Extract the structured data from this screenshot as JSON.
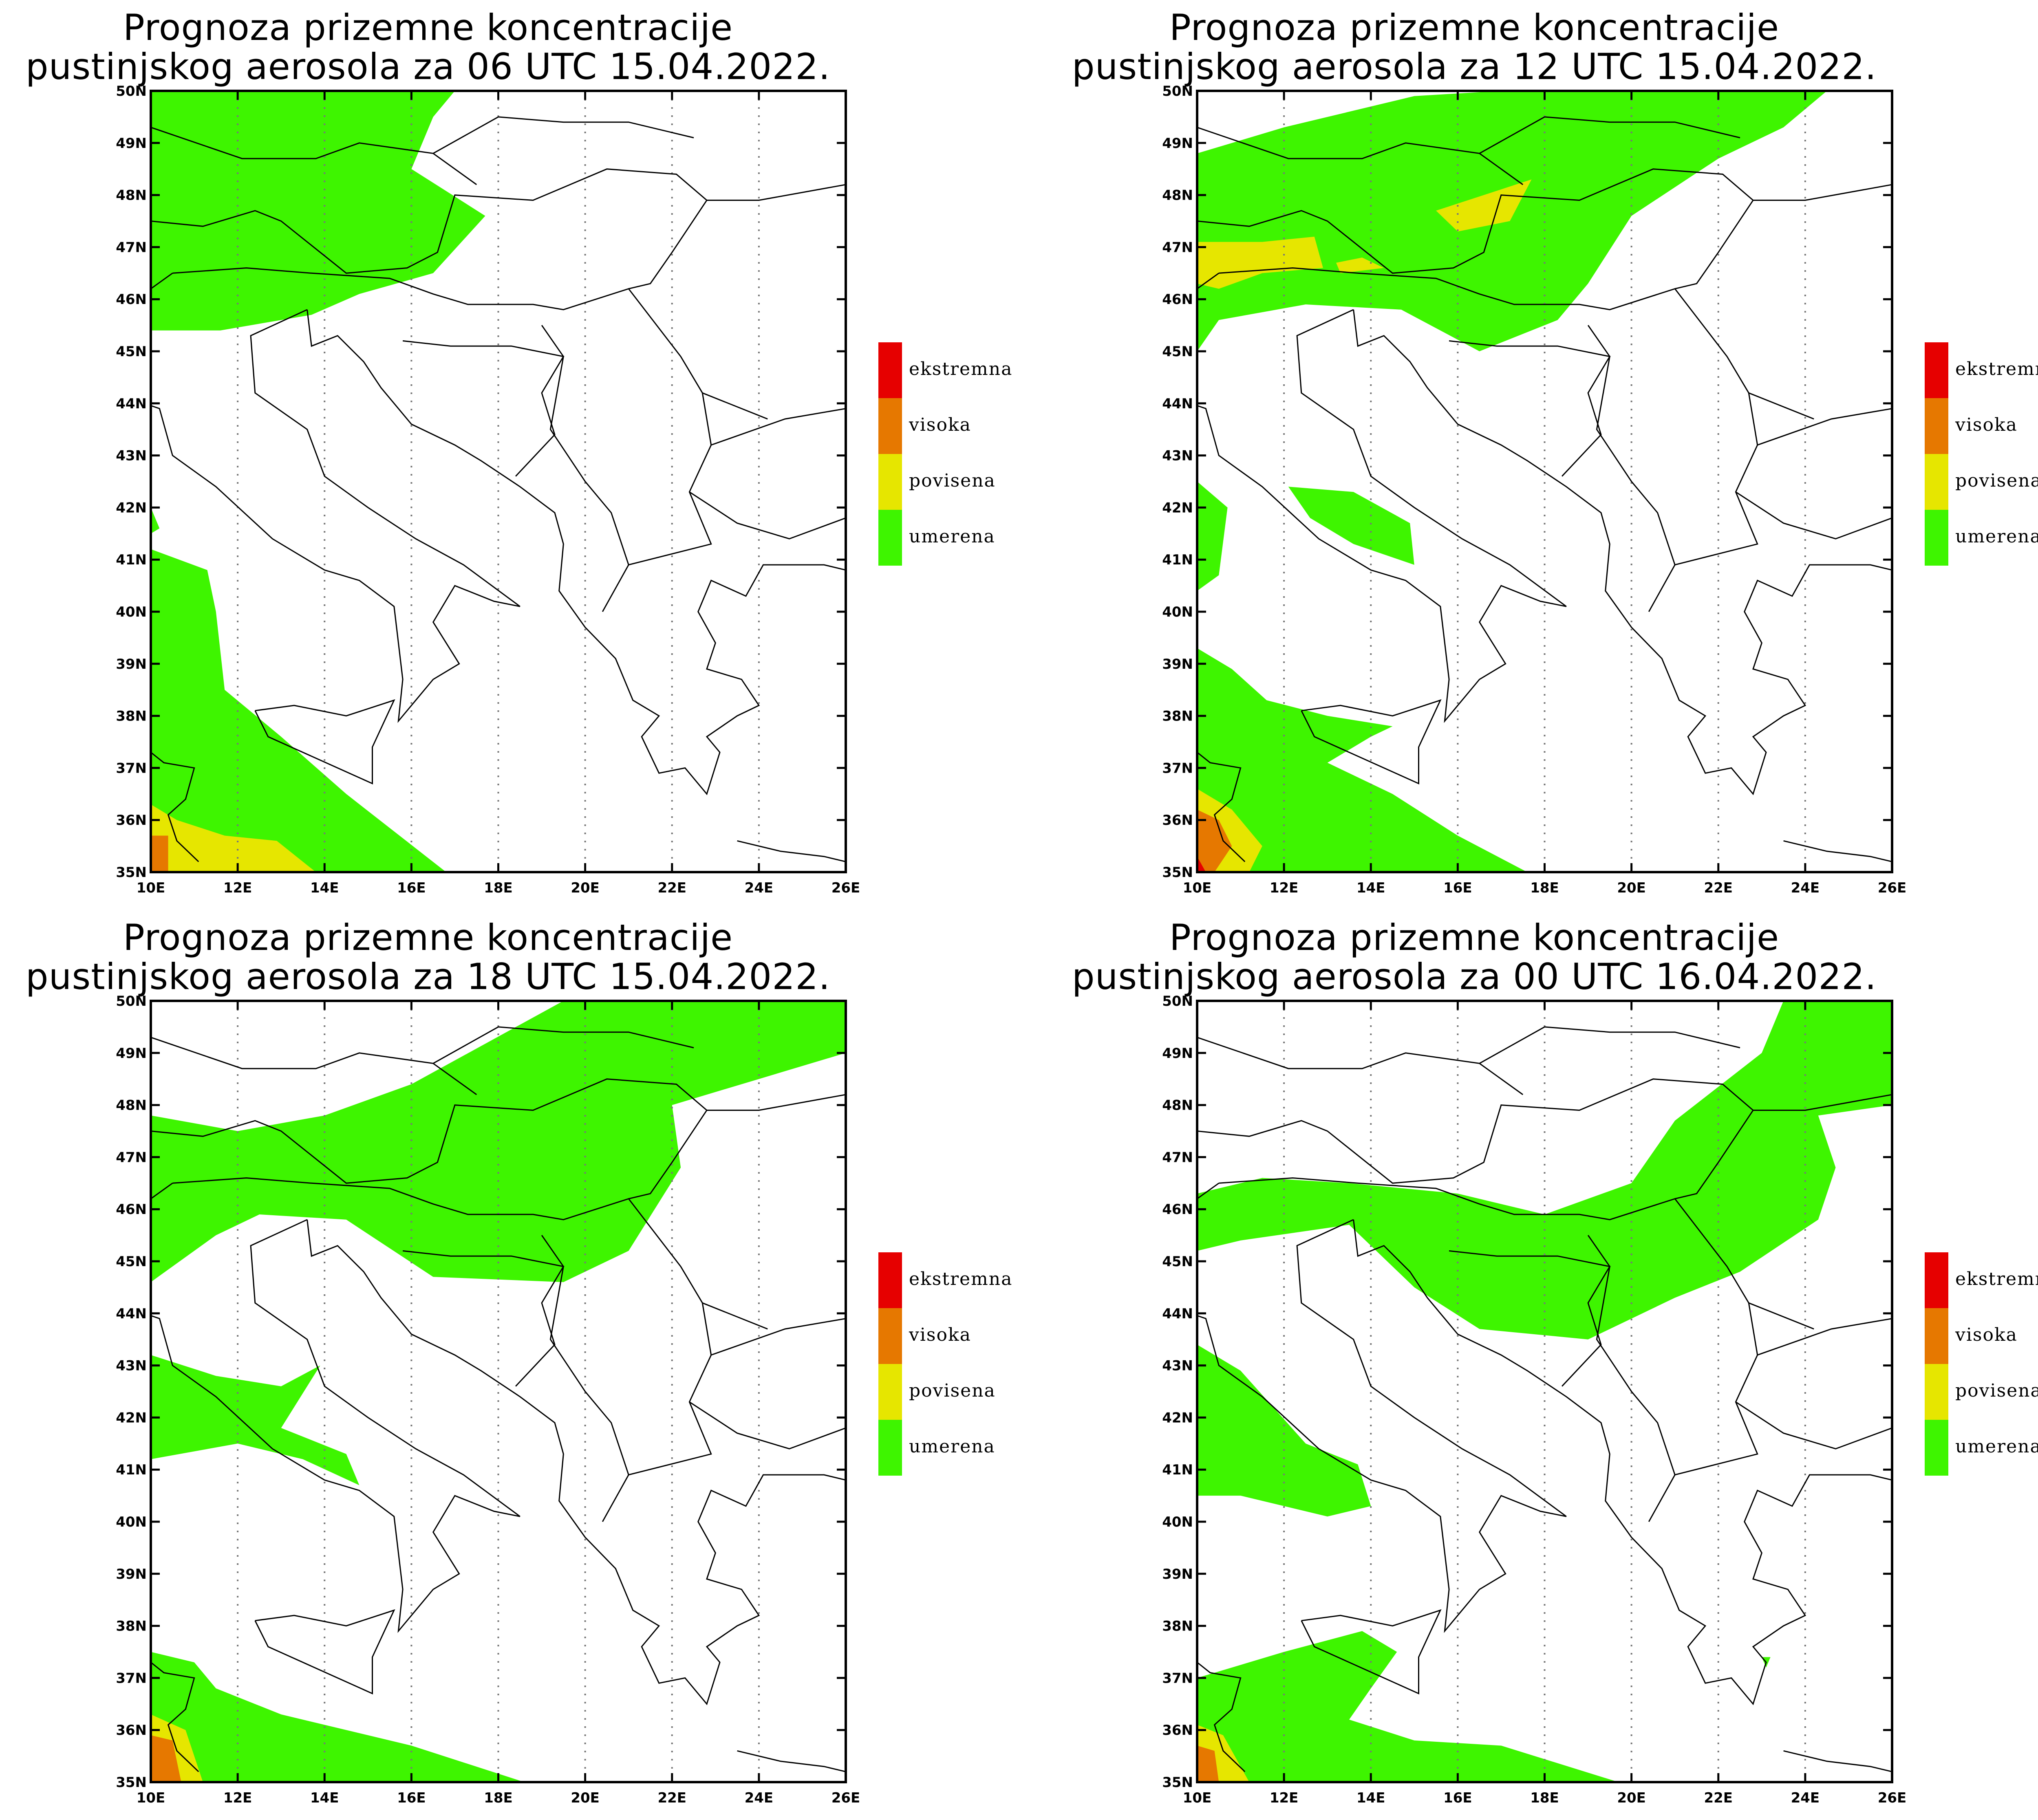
{
  "colors": {
    "umerena": "#3ef500",
    "povisena": "#e6e600",
    "visoka": "#e67800",
    "ekstremna": "#e60000",
    "border": "#000000",
    "grid": "#777777"
  },
  "legend": [
    "ekstremna",
    "visoka",
    "povisena",
    "umerena"
  ],
  "axes": {
    "lon_ticks": [
      "10E",
      "12E",
      "14E",
      "16E",
      "18E",
      "20E",
      "22E",
      "24E",
      "26E"
    ],
    "lat_ticks": [
      "35N",
      "36N",
      "37N",
      "38N",
      "39N",
      "40N",
      "41N",
      "42N",
      "43N",
      "44N",
      "45N",
      "46N",
      "47N",
      "48N",
      "49N",
      "50N"
    ]
  },
  "panels": [
    {
      "title_line1": "Prognoza prizemne koncentracije",
      "title_line2": "pustinjskog aerosola za 06 UTC 15.04.2022."
    },
    {
      "title_line1": "Prognoza prizemne koncentracije",
      "title_line2": "pustinjskog aerosola za 12 UTC 15.04.2022."
    },
    {
      "title_line1": "Prognoza prizemne koncentracije",
      "title_line2": "pustinjskog aerosola za 18 UTC 15.04.2022."
    },
    {
      "title_line1": "Prognoza prizemne koncentracije",
      "title_line2": "pustinjskog aerosola za 00 UTC 16.04.2022."
    }
  ]
}
